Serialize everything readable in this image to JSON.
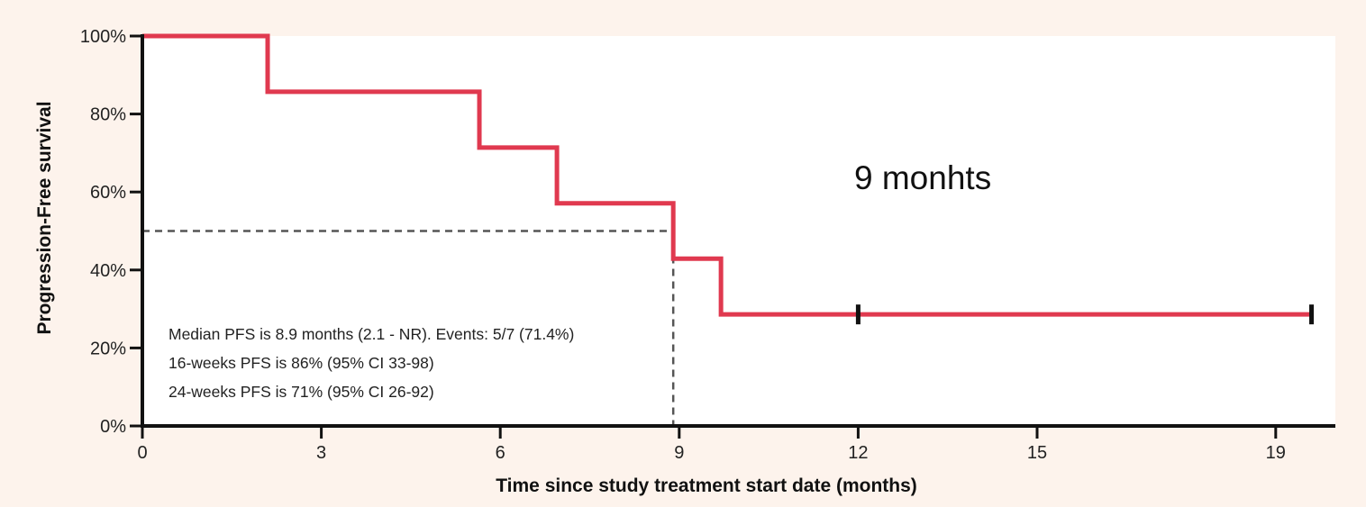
{
  "chart_data": {
    "type": "line",
    "subtype": "kaplan-meier-step",
    "xlabel": "Time since study treatment start date (months)",
    "ylabel": "Progression-Free survival",
    "xlim": [
      0,
      20
    ],
    "ylim": [
      0,
      100
    ],
    "x_ticks": [
      0,
      3,
      6,
      9,
      12,
      15,
      19
    ],
    "y_ticks": [
      0,
      20,
      40,
      60,
      80,
      100
    ],
    "y_tick_labels": [
      "0%",
      "20%",
      "40%",
      "60%",
      "80%",
      "100%"
    ],
    "grid": false,
    "series": [
      {
        "color": "#e0394f",
        "steps": [
          {
            "x": 0,
            "y": 100
          },
          {
            "x": 2.1,
            "y": 85.7
          },
          {
            "x": 5.65,
            "y": 71.4
          },
          {
            "x": 6.95,
            "y": 57.1
          },
          {
            "x": 8.9,
            "y": 42.9
          },
          {
            "x": 9.7,
            "y": 28.6
          }
        ],
        "end_x": 19.6,
        "censored": [
          {
            "x": 12.0,
            "y": 28.6
          },
          {
            "x": 19.6,
            "y": 28.6
          }
        ]
      }
    ],
    "median_reference": {
      "x": 8.9,
      "y": 50,
      "color": "#555555"
    },
    "annotations": [
      "Median PFS is 8.9 months (2.1 - NR). Events: 5/7 (71.4%)",
      "16-weeks PFS is 86% (95% CI 33-98)",
      "24-weeks PFS is 71% (95% CI 26-92)"
    ],
    "overlay_text": "9 monhts"
  }
}
